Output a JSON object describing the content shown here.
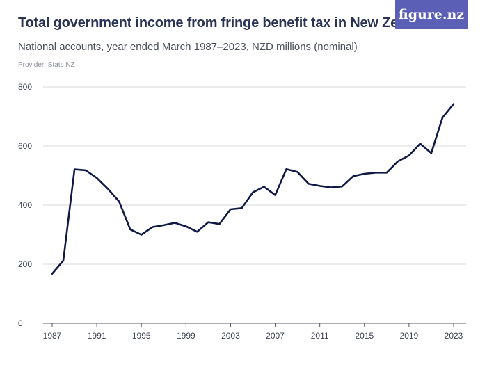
{
  "header": {
    "title": "Total government income from fringe benefit tax in New Zealand",
    "subtitle": "National accounts, year ended March 1987–2023, NZD millions (nominal)",
    "provider": "Provider: Stats NZ",
    "logo_text": "figure.nz"
  },
  "colors": {
    "line": "#0e1a45",
    "grid": "#d9d9d9",
    "logo_bg": "#5b5fb5"
  },
  "chart_data": {
    "type": "line",
    "title": "Total government income from fringe benefit tax in New Zealand",
    "subtitle": "National accounts, year ended March 1987–2023, NZD millions (nominal)",
    "xlabel": "",
    "ylabel": "",
    "ylim": [
      0,
      800
    ],
    "xlim": [
      1987,
      2023
    ],
    "yticks": [
      0,
      200,
      400,
      600,
      800
    ],
    "xticks": [
      1987,
      1991,
      1995,
      1999,
      2003,
      2007,
      2011,
      2015,
      2019,
      2023
    ],
    "grid": true,
    "legend": "none",
    "x": [
      1987,
      1988,
      1989,
      1990,
      1991,
      1992,
      1993,
      1994,
      1995,
      1996,
      1997,
      1998,
      1999,
      2000,
      2001,
      2002,
      2003,
      2004,
      2005,
      2006,
      2007,
      2008,
      2009,
      2010,
      2011,
      2012,
      2013,
      2014,
      2015,
      2016,
      2017,
      2018,
      2019,
      2020,
      2021,
      2022,
      2023
    ],
    "series": [
      {
        "values": [
          168,
          212,
          521,
          518,
          492,
          455,
          412,
          318,
          300,
          326,
          332,
          340,
          328,
          310,
          342,
          336,
          386,
          390,
          443,
          462,
          434,
          522,
          512,
          472,
          465,
          460,
          463,
          498,
          506,
          510,
          510,
          548,
          568,
          608,
          576,
          696,
          742
        ]
      }
    ]
  }
}
